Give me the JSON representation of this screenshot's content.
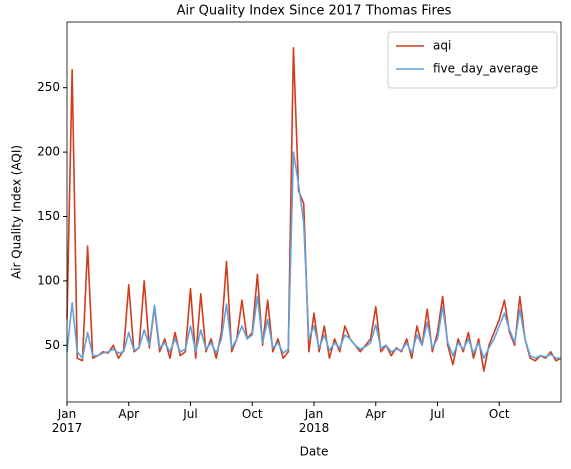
{
  "chart_data": {
    "type": "line",
    "title": "Air Quality Index Since 2017 Thomas Fires",
    "xlabel": "Date",
    "ylabel": "Air Quality Index (AQI)",
    "x": [
      0,
      0.25,
      0.5,
      0.75,
      1,
      1.25,
      1.5,
      1.75,
      2,
      2.25,
      2.5,
      2.75,
      3,
      3.25,
      3.5,
      3.75,
      4,
      4.25,
      4.5,
      4.75,
      5,
      5.25,
      5.5,
      5.75,
      6,
      6.25,
      6.5,
      6.75,
      7,
      7.25,
      7.5,
      7.75,
      8,
      8.25,
      8.5,
      8.75,
      9,
      9.25,
      9.5,
      9.75,
      10,
      10.25,
      10.5,
      10.75,
      11,
      11.25,
      11.5,
      11.75,
      12,
      12.25,
      12.5,
      12.75,
      13,
      13.25,
      13.5,
      13.75,
      14,
      14.25,
      14.5,
      14.75,
      15,
      15.25,
      15.5,
      15.75,
      16,
      16.25,
      16.5,
      16.75,
      17,
      17.25,
      17.5,
      17.75,
      18,
      18.25,
      18.5,
      18.75,
      19,
      19.25,
      19.5,
      19.75,
      20,
      20.25,
      20.5,
      20.75,
      21,
      21.25,
      21.5,
      21.75,
      22,
      22.25,
      22.5,
      22.75,
      23,
      23.25,
      23.5,
      23.75,
      24
    ],
    "series": [
      {
        "name": "aqi",
        "color": "#d03c1c",
        "values": [
          70,
          264,
          40,
          38,
          127,
          40,
          42,
          45,
          44,
          50,
          40,
          46,
          97,
          45,
          48,
          100,
          48,
          80,
          45,
          55,
          40,
          60,
          42,
          45,
          94,
          40,
          90,
          45,
          55,
          40,
          60,
          115,
          45,
          55,
          85,
          55,
          60,
          105,
          50,
          85,
          45,
          55,
          40,
          45,
          281,
          170,
          160,
          45,
          75,
          45,
          65,
          40,
          55,
          45,
          65,
          55,
          50,
          45,
          50,
          55,
          80,
          45,
          50,
          42,
          48,
          45,
          55,
          40,
          65,
          50,
          78,
          45,
          60,
          88,
          50,
          35,
          55,
          45,
          60,
          40,
          55,
          30,
          50,
          60,
          70,
          85,
          60,
          50,
          88,
          55,
          40,
          38,
          42,
          40,
          45,
          38,
          40
        ]
      },
      {
        "name": "five_day_average",
        "color": "#5fa3df",
        "values": [
          45,
          83,
          45,
          40,
          60,
          42,
          42,
          44,
          45,
          47,
          44,
          45,
          60,
          46,
          48,
          62,
          50,
          81,
          48,
          52,
          45,
          55,
          45,
          47,
          65,
          45,
          62,
          47,
          52,
          44,
          55,
          82,
          48,
          55,
          65,
          55,
          58,
          88,
          52,
          70,
          48,
          52,
          44,
          47,
          200,
          175,
          145,
          55,
          65,
          48,
          58,
          46,
          52,
          48,
          58,
          55,
          50,
          47,
          49,
          52,
          66,
          48,
          50,
          45,
          47,
          46,
          52,
          44,
          58,
          50,
          68,
          48,
          55,
          80,
          52,
          42,
          52,
          47,
          55,
          44,
          52,
          40,
          48,
          55,
          65,
          75,
          62,
          52,
          78,
          55,
          42,
          40,
          42,
          41,
          43,
          40,
          40
        ]
      }
    ],
    "xlim": [
      0,
      24
    ],
    "ylim": [
      6,
      301
    ],
    "xticks": [
      {
        "value": 0,
        "label": "Jan\n2017"
      },
      {
        "value": 3,
        "label": "Apr"
      },
      {
        "value": 6,
        "label": "Jul"
      },
      {
        "value": 9,
        "label": "Oct"
      },
      {
        "value": 12,
        "label": "Jan\n2018"
      },
      {
        "value": 15,
        "label": "Apr"
      },
      {
        "value": 18,
        "label": "Jul"
      },
      {
        "value": 21,
        "label": "Oct"
      }
    ],
    "yticks": [
      50,
      100,
      150,
      200,
      250
    ],
    "grid": false,
    "legend": "upper right"
  }
}
